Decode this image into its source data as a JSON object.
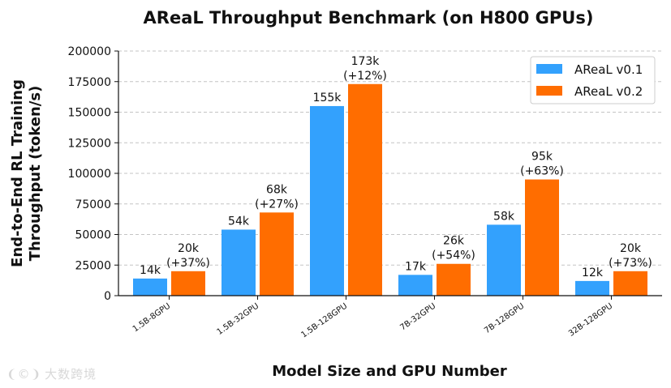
{
  "chart_data": {
    "type": "bar",
    "title": "AReaL Throughput Benchmark (on H800 GPUs)",
    "xlabel": "Model Size and GPU Number",
    "ylabel_line1": "End-to-End RL Training",
    "ylabel_line2": "Throughput (token/s)",
    "ylim": [
      0,
      200000
    ],
    "yticks": [
      "0",
      "25000",
      "50000",
      "75000",
      "100000",
      "125000",
      "150000",
      "175000",
      "200000"
    ],
    "ytick_values": [
      0,
      25000,
      50000,
      75000,
      100000,
      125000,
      150000,
      175000,
      200000
    ],
    "grid": "horizontal dashed",
    "legend_position": "top-right",
    "categories": [
      "1.5B-8GPU",
      "1.5B-32GPU",
      "1.5B-128GPU",
      "7B-32GPU",
      "7B-128GPU",
      "32B-128GPU"
    ],
    "series": [
      {
        "name": "AReaL v0.1",
        "color": "#33a1fd",
        "values": [
          14000,
          54000,
          155000,
          17000,
          58000,
          12000
        ],
        "labels": [
          [
            "14k"
          ],
          [
            "54k"
          ],
          [
            "155k"
          ],
          [
            "17k"
          ],
          [
            "58k"
          ],
          [
            "12k"
          ]
        ]
      },
      {
        "name": "AReaL v0.2",
        "color": "#ff6d00",
        "values": [
          20000,
          68000,
          173000,
          26000,
          95000,
          20000
        ],
        "labels": [
          [
            "20k",
            "(+37%)"
          ],
          [
            "68k",
            "(+27%)"
          ],
          [
            "173k",
            "(+12%)"
          ],
          [
            "26k",
            "(+54%)"
          ],
          [
            "95k",
            "(+63%)"
          ],
          [
            "20k",
            "(+73%)"
          ]
        ]
      }
    ]
  },
  "watermark": "大数跨境"
}
